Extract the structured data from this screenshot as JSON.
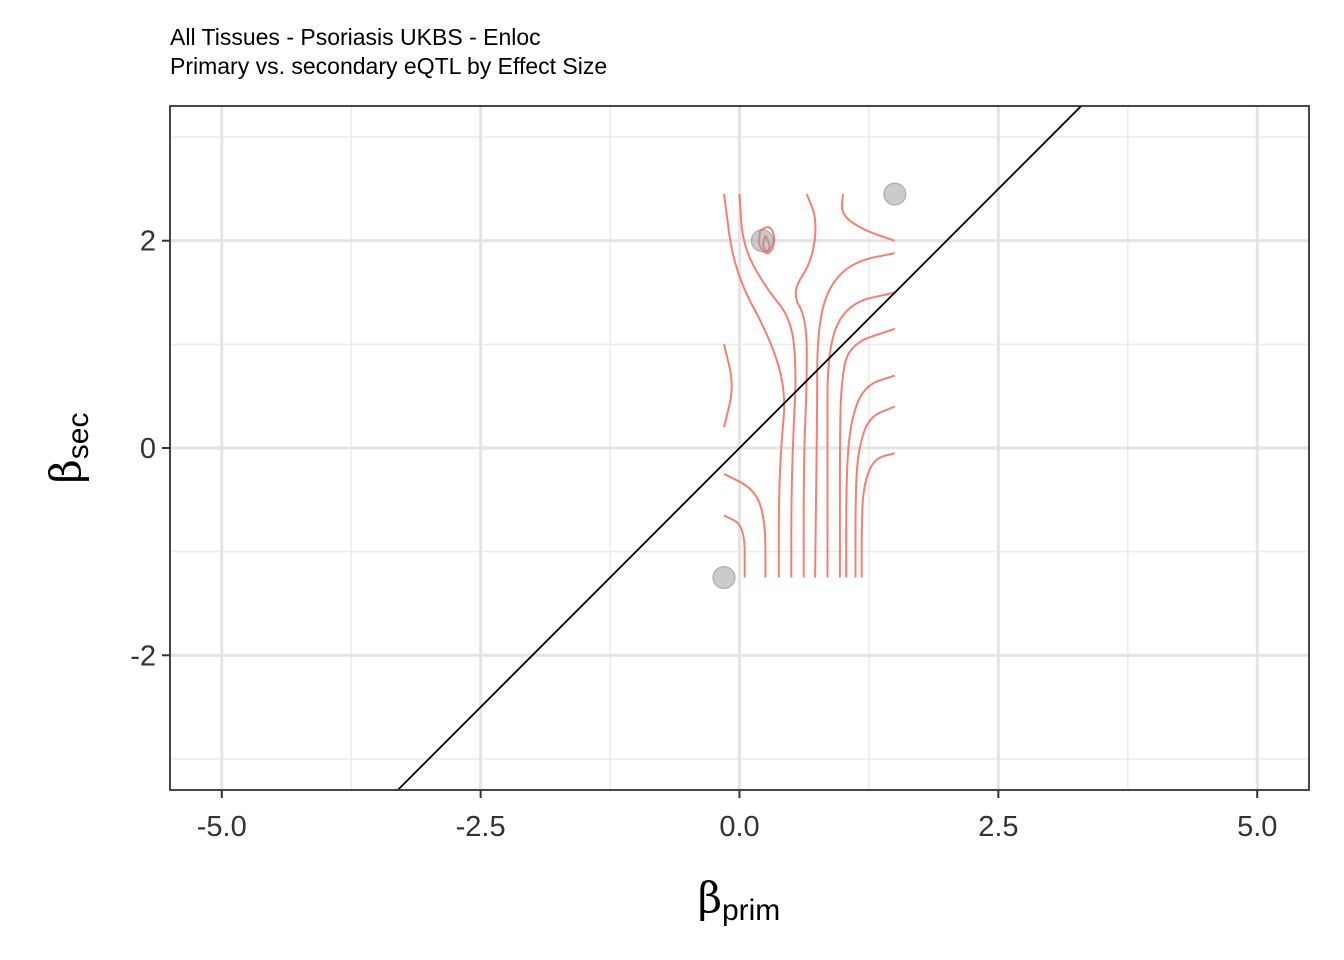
{
  "chart_data": {
    "type": "scatter",
    "title": "All Tissues - Psoriasis UKBS - Enloc",
    "subtitle": "Primary vs. secondary eQTL by Effect Size",
    "xlabel": {
      "symbol": "β",
      "subscript": "prim"
    },
    "ylabel": {
      "symbol": "β",
      "subscript": "sec"
    },
    "xlim": [
      -5.5,
      5.5
    ],
    "ylim": [
      -3.3,
      3.3
    ],
    "x_ticks": [
      -5.0,
      -2.5,
      0.0,
      2.5,
      5.0
    ],
    "x_tick_labels": [
      "-5.0",
      "-2.5",
      "0.0",
      "2.5",
      "5.0"
    ],
    "y_ticks": [
      -2,
      0,
      2
    ],
    "y_tick_labels": [
      "-2",
      "0",
      "2"
    ],
    "grid": true,
    "points": [
      {
        "x": -0.15,
        "y": -1.25
      },
      {
        "x": 0.22,
        "y": 2.0
      },
      {
        "x": 1.5,
        "y": 2.45
      }
    ],
    "reference_line": {
      "slope": 1,
      "intercept": 0,
      "color": "#000000"
    },
    "point_color": "#a0a0a0",
    "contour_color": "#f8766d",
    "contours": [
      [
        [
          -0.15,
          -0.65
        ],
        [
          0.05,
          -0.75
        ],
        [
          0.05,
          -1.25
        ]
      ],
      [
        [
          -0.15,
          -0.25
        ],
        [
          0.15,
          -0.4
        ],
        [
          0.25,
          -0.7
        ],
        [
          0.25,
          -1.25
        ]
      ],
      [
        [
          -0.15,
          1.0
        ],
        [
          -0.05,
          0.6
        ],
        [
          -0.15,
          0.2
        ]
      ],
      [
        [
          -0.15,
          2.45
        ],
        [
          -0.05,
          1.7
        ],
        [
          0.3,
          1.05
        ],
        [
          0.45,
          0.55
        ],
        [
          0.4,
          0.0
        ],
        [
          0.38,
          -0.5
        ],
        [
          0.38,
          -1.25
        ]
      ],
      [
        [
          0.0,
          2.45
        ],
        [
          0.03,
          1.95
        ],
        [
          0.25,
          1.55
        ],
        [
          0.5,
          1.25
        ],
        [
          0.55,
          0.75
        ],
        [
          0.52,
          0.15
        ],
        [
          0.5,
          -0.5
        ],
        [
          0.5,
          -1.25
        ]
      ],
      [
        [
          0.2,
          2.1
        ],
        [
          0.3,
          2.15
        ],
        [
          0.35,
          2.0
        ],
        [
          0.28,
          1.85
        ],
        [
          0.18,
          1.95
        ],
        [
          0.2,
          2.1
        ]
      ],
      [
        [
          0.25,
          2.05
        ],
        [
          0.3,
          1.95
        ],
        [
          0.27,
          1.88
        ],
        [
          0.22,
          1.95
        ],
        [
          0.25,
          2.05
        ]
      ],
      [
        [
          0.65,
          2.45
        ],
        [
          0.75,
          2.2
        ],
        [
          0.7,
          1.8
        ],
        [
          0.5,
          1.5
        ],
        [
          0.65,
          1.25
        ],
        [
          0.65,
          0.6
        ],
        [
          0.62,
          -0.1
        ],
        [
          0.62,
          -1.25
        ]
      ],
      [
        [
          1.5,
          1.88
        ],
        [
          1.1,
          1.8
        ],
        [
          0.85,
          1.55
        ],
        [
          0.75,
          1.1
        ],
        [
          0.75,
          0.35
        ],
        [
          0.73,
          -1.25
        ]
      ],
      [
        [
          1.5,
          1.5
        ],
        [
          1.05,
          1.4
        ],
        [
          0.85,
          1.0
        ],
        [
          0.85,
          0.0
        ],
        [
          0.85,
          -1.25
        ]
      ],
      [
        [
          1.5,
          1.15
        ],
        [
          1.05,
          1.0
        ],
        [
          0.98,
          0.6
        ],
        [
          0.97,
          0.1
        ],
        [
          0.97,
          -1.25
        ]
      ],
      [
        [
          1.5,
          0.7
        ],
        [
          1.2,
          0.6
        ],
        [
          1.07,
          0.25
        ],
        [
          1.03,
          -0.3
        ],
        [
          1.03,
          -1.25
        ]
      ],
      [
        [
          1.5,
          0.4
        ],
        [
          1.25,
          0.3
        ],
        [
          1.15,
          0.0
        ],
        [
          1.12,
          -0.4
        ],
        [
          1.12,
          -1.25
        ]
      ],
      [
        [
          1.5,
          -0.05
        ],
        [
          1.3,
          -0.1
        ],
        [
          1.2,
          -0.35
        ],
        [
          1.18,
          -0.7
        ],
        [
          1.18,
          -1.25
        ]
      ],
      [
        [
          1.0,
          2.45
        ],
        [
          0.98,
          2.25
        ],
        [
          1.2,
          2.1
        ],
        [
          1.5,
          2.0
        ]
      ]
    ]
  }
}
